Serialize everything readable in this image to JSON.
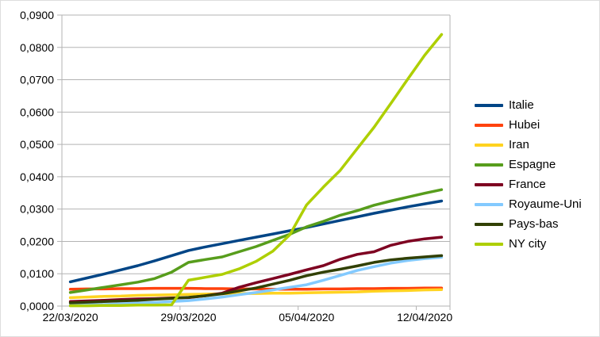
{
  "chart_data": {
    "type": "line",
    "title": "",
    "xlabel": "",
    "ylabel": "",
    "grid": "horizontal",
    "legend_position": "right",
    "ylim": [
      0,
      0.09
    ],
    "y_tick_step": 0.01,
    "y_tick_labels": [
      "0,0000",
      "0,0100",
      "0,0200",
      "0,0300",
      "0,0400",
      "0,0500",
      "0,0600",
      "0,0700",
      "0,0800",
      "0,0900"
    ],
    "x_categories": [
      "22/03/2020",
      "23/03/2020",
      "24/03/2020",
      "25/03/2020",
      "26/03/2020",
      "27/03/2020",
      "28/03/2020",
      "29/03/2020",
      "30/03/2020",
      "31/03/2020",
      "01/04/2020",
      "02/04/2020",
      "03/04/2020",
      "04/04/2020",
      "05/04/2020",
      "06/04/2020",
      "07/04/2020",
      "08/04/2020",
      "09/04/2020",
      "10/04/2020",
      "11/04/2020",
      "12/04/2020",
      "13/04/2020"
    ],
    "x_tick_labels": [
      "22/03/2020",
      "29/03/2020",
      "05/04/2020",
      "12/04/2020"
    ],
    "x_tick_indices": [
      0,
      7,
      14,
      21
    ],
    "series": [
      {
        "name": "Italie",
        "color": "#004586",
        "values": [
          0.0075,
          0.0087,
          0.0099,
          0.0112,
          0.0125,
          0.014,
          0.0156,
          0.0172,
          0.0183,
          0.0193,
          0.0203,
          0.0213,
          0.0223,
          0.0233,
          0.0243,
          0.0254,
          0.0265,
          0.0276,
          0.0287,
          0.0297,
          0.0307,
          0.0316,
          0.0325
        ]
      },
      {
        "name": "Hubei",
        "color": "#ff420e",
        "values": [
          0.0052,
          0.0053,
          0.0053,
          0.0054,
          0.0054,
          0.0055,
          0.0055,
          0.0055,
          0.0054,
          0.0054,
          0.0053,
          0.0053,
          0.0052,
          0.0052,
          0.0052,
          0.0053,
          0.0053,
          0.0054,
          0.0054,
          0.0055,
          0.0055,
          0.0056,
          0.0056
        ]
      },
      {
        "name": "Iran",
        "color": "#ffd320",
        "values": [
          0.0026,
          0.0028,
          0.003,
          0.0031,
          0.0033,
          0.0034,
          0.0035,
          0.0036,
          0.0037,
          0.0038,
          0.0039,
          0.0039,
          0.004,
          0.004,
          0.0041,
          0.0042,
          0.0043,
          0.0044,
          0.0046,
          0.0047,
          0.0048,
          0.005,
          0.0051
        ]
      },
      {
        "name": "Espagne",
        "color": "#579d1c",
        "values": [
          0.0042,
          0.005,
          0.0058,
          0.0066,
          0.0074,
          0.0085,
          0.0105,
          0.0135,
          0.0144,
          0.0152,
          0.0168,
          0.0184,
          0.0203,
          0.0222,
          0.0245,
          0.0262,
          0.0281,
          0.0295,
          0.0312,
          0.0325,
          0.0337,
          0.0349,
          0.036
        ]
      },
      {
        "name": "France",
        "color": "#7e0021",
        "values": [
          0.0014,
          0.0016,
          0.0018,
          0.002,
          0.0022,
          0.0023,
          0.0025,
          0.0026,
          0.0032,
          0.004,
          0.0058,
          0.0072,
          0.0085,
          0.0098,
          0.0112,
          0.0125,
          0.0145,
          0.016,
          0.0168,
          0.0188,
          0.02,
          0.0208,
          0.0213
        ]
      },
      {
        "name": "Royaume-Uni",
        "color": "#83caff",
        "values": [
          0.0003,
          0.0004,
          0.0005,
          0.0007,
          0.0009,
          0.0011,
          0.0014,
          0.0017,
          0.0022,
          0.0028,
          0.0035,
          0.0042,
          0.005,
          0.0058,
          0.0066,
          0.008,
          0.0095,
          0.011,
          0.0122,
          0.0133,
          0.0141,
          0.0147,
          0.0151
        ]
      },
      {
        "name": "Pays-bas",
        "color": "#314004",
        "values": [
          0.001,
          0.0012,
          0.0014,
          0.0016,
          0.0018,
          0.0021,
          0.0024,
          0.0027,
          0.0032,
          0.0038,
          0.0047,
          0.0056,
          0.0068,
          0.008,
          0.0094,
          0.0105,
          0.0114,
          0.0124,
          0.0135,
          0.0143,
          0.0148,
          0.0152,
          0.0156
        ]
      },
      {
        "name": "NY city",
        "color": "#aecf00",
        "values": [
          0.0001,
          0.0001,
          0.0002,
          0.0002,
          0.0003,
          0.0003,
          0.0004,
          0.008,
          0.0089,
          0.0098,
          0.0115,
          0.0138,
          0.017,
          0.022,
          0.0313,
          0.0368,
          0.042,
          0.0487,
          0.0553,
          0.0627,
          0.0702,
          0.0776,
          0.084
        ]
      }
    ]
  },
  "style": {
    "axis_color": "#b3b3b3",
    "text_color": "#000000",
    "background": "#ffffff",
    "line_width": 3.5
  }
}
